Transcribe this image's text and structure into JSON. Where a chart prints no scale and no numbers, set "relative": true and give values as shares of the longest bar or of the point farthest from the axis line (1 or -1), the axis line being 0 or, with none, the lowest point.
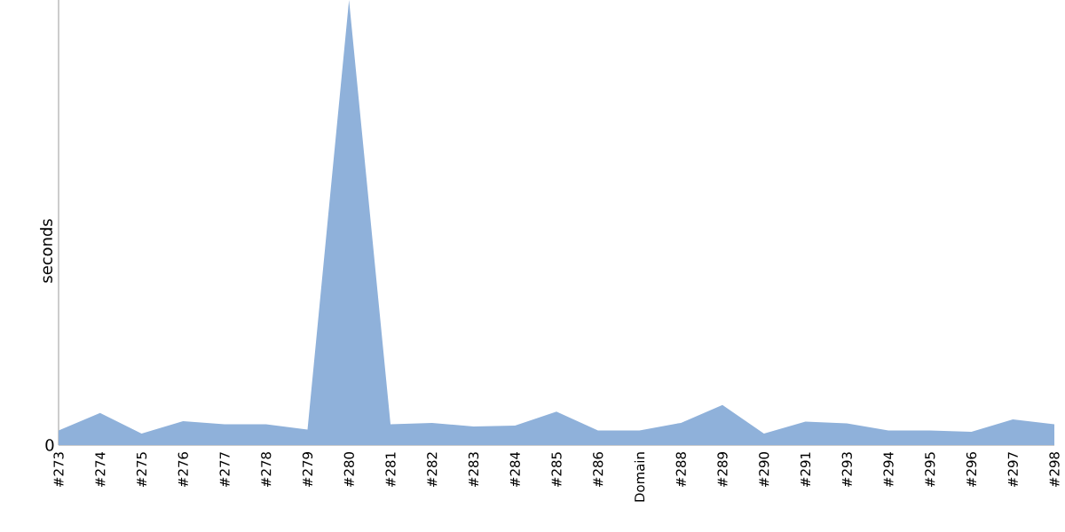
{
  "chart_data": {
    "type": "area",
    "ylabel": "seconds",
    "relative": true,
    "categories": [
      "#273",
      "#274",
      "#275",
      "#276",
      "#277",
      "#278",
      "#279",
      "#280",
      "#281",
      "#282",
      "#283",
      "#284",
      "#285",
      "#286",
      "Domain",
      "#288",
      "#289",
      "#290",
      "#291",
      "#293",
      "#294",
      "#295",
      "#296",
      "#297",
      "#298"
    ],
    "values": [
      0.033,
      0.072,
      0.026,
      0.054,
      0.047,
      0.047,
      0.035,
      1,
      0.047,
      0.05,
      0.042,
      0.044,
      0.075,
      0.033,
      0.033,
      0.05,
      0.09,
      0.026,
      0.053,
      0.049,
      0.033,
      0.033,
      0.03,
      0.058,
      0.047
    ],
    "color": "#8fb1da",
    "annotations": [
      "0"
    ]
  }
}
